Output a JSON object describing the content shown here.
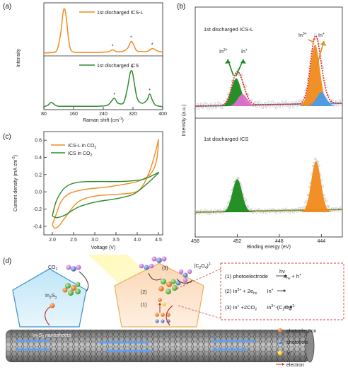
{
  "panels": {
    "a": "(a)",
    "b": "(b)",
    "c": "(c)",
    "d": "(d)"
  },
  "colors": {
    "orange": "#f28c1e",
    "green": "#2e8b2e",
    "red_fit": "#e02020",
    "dark_green_fill": "#1a8a1a",
    "pink_fill": "#e070d0",
    "blue_fill": "#4a9ae8",
    "olive_baseline": "#8a8a1a",
    "orange_fill": "#f08a1a"
  },
  "chart_data": [
    {
      "panel": "a",
      "type": "line",
      "xlabel": "Raman shift (cm⁻¹)",
      "ylabel": "Intensity",
      "xlim": [
        80,
        400
      ],
      "xticks": [
        "80",
        "160",
        "240",
        "320",
        "400"
      ],
      "series": [
        {
          "name": "1st discharged ICS-L",
          "x": [
            80,
            100,
            115,
            125,
            132,
            137,
            142,
            147,
            152,
            160,
            175,
            200,
            230,
            255,
            265,
            275,
            290,
            305,
            315,
            322,
            330,
            345,
            360,
            372,
            380,
            390,
            400
          ],
          "y": [
            0.02,
            0.03,
            0.08,
            0.45,
            0.95,
            1.0,
            0.7,
            0.3,
            0.1,
            0.04,
            0.03,
            0.03,
            0.03,
            0.05,
            0.09,
            0.05,
            0.05,
            0.12,
            0.28,
            0.2,
            0.07,
            0.05,
            0.06,
            0.12,
            0.09,
            0.05,
            0.04
          ]
        },
        {
          "name": "1st discharged ICS",
          "x": [
            80,
            90,
            100,
            110,
            120,
            140,
            180,
            220,
            250,
            262,
            270,
            280,
            295,
            305,
            312,
            318,
            324,
            332,
            345,
            358,
            365,
            372,
            380,
            392,
            400
          ],
          "y": [
            0.02,
            0.05,
            0.12,
            0.06,
            0.03,
            0.03,
            0.03,
            0.03,
            0.05,
            0.15,
            0.22,
            0.1,
            0.12,
            0.45,
            0.8,
            0.85,
            0.55,
            0.2,
            0.1,
            0.18,
            0.32,
            0.18,
            0.06,
            0.03,
            0.02
          ]
        }
      ],
      "markers": [
        "*",
        "*",
        "*",
        "*",
        "*",
        "*"
      ]
    },
    {
      "panel": "c",
      "type": "line",
      "xlabel": "Voltage (V)",
      "ylabel": "Current density (mA cm⁻²)",
      "xlim": [
        1.8,
        4.6
      ],
      "ylim": [
        -0.5,
        0.7
      ],
      "xticks": [
        "2.0",
        "2.5",
        "3.0",
        "3.5",
        "4.0",
        "4.5"
      ],
      "yticks": [
        "-0.4",
        "-0.2",
        "0.0",
        "0.2",
        "0.4",
        "0.6"
      ],
      "series": [
        {
          "name": "ICS-L in CO2",
          "x": [
            2.0,
            2.05,
            2.15,
            2.3,
            2.6,
            3.0,
            3.5,
            3.9,
            4.1,
            4.3,
            4.45,
            4.5,
            4.45,
            4.3,
            4.0,
            3.6,
            3.2,
            2.8,
            2.4,
            2.2,
            2.1,
            2.0
          ],
          "y": [
            -0.38,
            -0.42,
            -0.4,
            -0.3,
            -0.12,
            -0.05,
            -0.03,
            -0.01,
            0.05,
            0.25,
            0.5,
            0.6,
            0.35,
            0.2,
            0.12,
            0.08,
            0.05,
            0.03,
            -0.02,
            -0.12,
            -0.25,
            -0.38
          ]
        },
        {
          "name": "ICS in CO2",
          "x": [
            2.0,
            2.1,
            2.3,
            2.6,
            3.0,
            3.5,
            3.9,
            4.2,
            4.5,
            4.4,
            4.1,
            3.6,
            3.1,
            2.6,
            2.3,
            2.1,
            2.0
          ],
          "y": [
            -0.28,
            -0.3,
            -0.27,
            -0.18,
            -0.12,
            -0.08,
            -0.03,
            0.08,
            0.22,
            0.2,
            0.14,
            0.12,
            0.12,
            0.11,
            0.05,
            -0.1,
            -0.28
          ]
        }
      ]
    },
    {
      "panel": "b",
      "type": "area",
      "xlabel": "Binding energy (eV)",
      "ylabel": "Intensity (a.u.)",
      "xlim": [
        456,
        442
      ],
      "xticks": [
        "456",
        "452",
        "448",
        "444"
      ],
      "subplots": [
        {
          "title": "1st discharged ICS-L",
          "peaks": [
            {
              "name": "In³⁺",
              "center": 452.1,
              "height": 0.28,
              "color": "#1a8a1a"
            },
            {
              "name": "In⁺",
              "center": 451.5,
              "height": 0.12,
              "color": "#e070d0"
            },
            {
              "name": "In³⁺",
              "center": 444.6,
              "height": 0.62,
              "color": "#f08a1a"
            },
            {
              "name": "In⁺",
              "center": 444.0,
              "height": 0.14,
              "color": "#4a9ae8"
            }
          ]
        },
        {
          "title": "1st discharged ICS",
          "peaks": [
            {
              "name": "In 3d3/2",
              "center": 452.0,
              "height": 0.55,
              "color": "#1a8a1a"
            },
            {
              "name": "In 3d5/2",
              "center": 444.5,
              "height": 0.85,
              "color": "#f08a1a"
            }
          ]
        }
      ]
    }
  ],
  "panel_a": {
    "legend_top": "1st discharged ICS-L",
    "legend_bottom": "1st discharged ICS",
    "ylabel": "Intensity",
    "xlabel": "Raman shift (cm",
    "xlabel_sup": "-1",
    "xlabel_end": ")",
    "xticks": [
      "80",
      "160",
      "240",
      "320",
      "400"
    ]
  },
  "panel_b": {
    "ylabel": "Intensity (a.u.)",
    "xlabel": "Binding energy (eV)",
    "top_title": "1st discharged ICS-L",
    "bottom_title": "1st discharged ICS",
    "left_label_a": "In",
    "left_label_a_sup": "3+",
    "left_label_b": "In",
    "left_label_b_sup": "+",
    "right_label_a": "In",
    "right_label_a_sup": "3+",
    "right_label_b": "In",
    "right_label_b_sup": "+",
    "xticks": [
      "456",
      "452",
      "448",
      "444"
    ]
  },
  "panel_c": {
    "ylabel": "Current density (mA cm",
    "ylabel_sup": "-2",
    "ylabel_end": ")",
    "xlabel": "Voltage (V)",
    "legend_1": "ICS-L in CO",
    "legend_1_sub": "2",
    "legend_2": "ICS in CO",
    "legend_2_sub": "2",
    "xticks": [
      "2.0",
      "2.5",
      "3.0",
      "3.5",
      "4.0",
      "4.5"
    ],
    "yticks": [
      "-0.4",
      "-0.2",
      "0.0",
      "0.2",
      "0.4",
      "0.6"
    ]
  },
  "panel_d": {
    "co2": "CO",
    "co2_sub": "2",
    "in2s3": "In",
    "in2s3_sub1": "2",
    "in2s3_s": "S",
    "in2s3_sub2": "3",
    "nanosheets_in": "In",
    "nanosheets_sub1": "2",
    "nanosheets_s": "S",
    "nanosheets_sub2": "3",
    "nanosheets_label": " nanosheets",
    "step1": "(1)",
    "step2": "(2)",
    "step3": "(3)",
    "oxalate": "(C",
    "oxalate_sub1": "2",
    "oxalate_o": "O",
    "oxalate_sub2": "4",
    "oxalate_end": ")",
    "oxalate_sup": "2-",
    "eq1_pre": "(1) photoelectrode",
    "eq1_hv": "hv",
    "eq1_post": "e",
    "eq1_post_sub": "hv",
    "eq1_post2": " + h",
    "eq1_post2_sup": "+",
    "eq2": "(2) In",
    "eq2_sup": "3+",
    "eq2_mid": " + 2e",
    "eq2_sub": "hv",
    "eq2_end": "In",
    "eq2_end_sup": "+",
    "eq3": "(3) In",
    "eq3_sup": "+",
    "eq3_mid": " +2CO",
    "eq3_sub": "2",
    "eq3_end": "In",
    "eq3_end_sup": "3+",
    "eq3_tail": "-(C",
    "eq3_tail_sub1": "2",
    "eq3_tail_o": "O",
    "eq3_tail_sub2": "4",
    "eq3_tail_end": ")",
    "eq3_tail_sup": "2-",
    "legend": [
      "photoelectron",
      "photohole",
      "In",
      "electron"
    ],
    "legend_in_sup": "+"
  }
}
